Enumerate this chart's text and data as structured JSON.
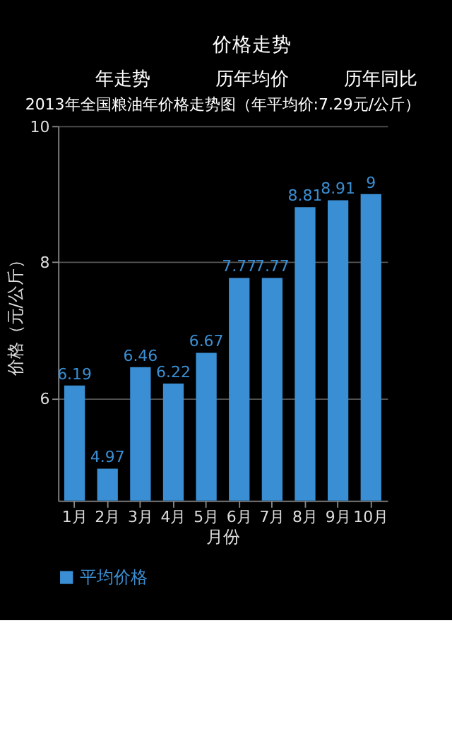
{
  "chart_data": {
    "type": "bar",
    "title": "2013年全国粮油年价格走势图（年平均价:7.29元/公斤）",
    "xlabel": "月份",
    "ylabel": "价格（元/公斤）",
    "annotations": [
      "价格走势",
      "年走势",
      "历年均价",
      "历年同比"
    ],
    "categories": [
      "1月",
      "2月",
      "3月",
      "4月",
      "5月",
      "6月",
      "7月",
      "8月",
      "9月",
      "10月"
    ],
    "series": [
      {
        "name": "平均价格",
        "color": "#3a8fd4",
        "values": [
          6.19,
          4.97,
          6.46,
          6.22,
          6.67,
          7.77,
          7.77,
          8.81,
          8.91,
          9
        ]
      }
    ],
    "ylim": [
      4.5,
      10
    ],
    "yticks": [
      6,
      8,
      10
    ],
    "grid": "y",
    "legend": "bottom left",
    "data_labels": true
  }
}
